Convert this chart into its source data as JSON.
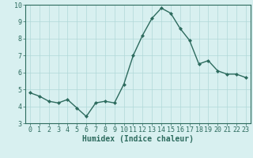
{
  "x": [
    0,
    1,
    2,
    3,
    4,
    5,
    6,
    7,
    8,
    9,
    10,
    11,
    12,
    13,
    14,
    15,
    16,
    17,
    18,
    19,
    20,
    21,
    22,
    23
  ],
  "y": [
    4.8,
    4.6,
    4.3,
    4.2,
    4.4,
    3.9,
    3.4,
    4.2,
    4.3,
    4.2,
    5.3,
    7.0,
    8.2,
    9.2,
    9.8,
    9.5,
    8.6,
    7.9,
    6.5,
    6.7,
    6.1,
    5.9,
    5.9,
    5.7
  ],
  "xlabel": "Humidex (Indice chaleur)",
  "ylim": [
    3,
    10
  ],
  "xlim_min": -0.5,
  "xlim_max": 23.5,
  "yticks": [
    3,
    4,
    5,
    6,
    7,
    8,
    9,
    10
  ],
  "xticks": [
    0,
    1,
    2,
    3,
    4,
    5,
    6,
    7,
    8,
    9,
    10,
    11,
    12,
    13,
    14,
    15,
    16,
    17,
    18,
    19,
    20,
    21,
    22,
    23
  ],
  "line_color": "#2d6b5e",
  "marker": "D",
  "marker_size": 2.0,
  "bg_color": "#d8f0f0",
  "grid_color": "#b0d8d8",
  "xlabel_fontsize": 7,
  "tick_fontsize": 6,
  "linewidth": 1.0
}
